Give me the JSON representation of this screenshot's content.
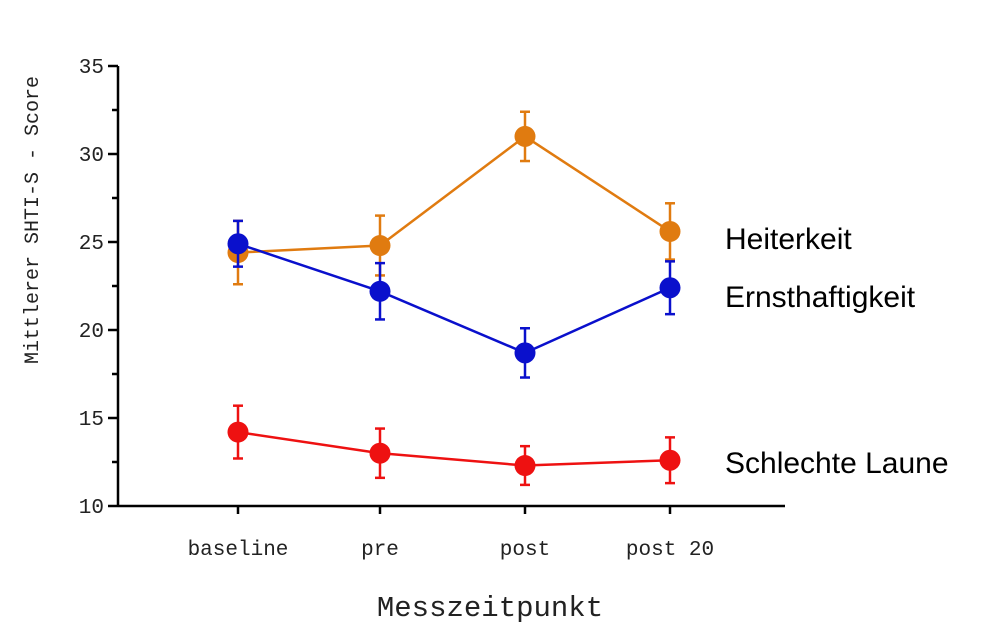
{
  "chart_data": {
    "type": "line",
    "xlabel": "Messzeitpunkt",
    "ylabel": "Mittlerer SHTI-S - Score",
    "categories": [
      "baseline",
      "pre",
      "post",
      "post 20"
    ],
    "ylim": [
      10,
      35
    ],
    "yticks": [
      10,
      15,
      20,
      25,
      30,
      35
    ],
    "grid": false,
    "error_bars": true,
    "series": [
      {
        "name": "Heiterkeit",
        "color": "#E07B10",
        "values": [
          24.4,
          24.8,
          31.0,
          25.6
        ],
        "errors": [
          1.8,
          1.7,
          1.4,
          1.6
        ]
      },
      {
        "name": "Ernsthaftigkeit",
        "color": "#0A10CC",
        "values": [
          24.9,
          22.2,
          18.7,
          22.4
        ],
        "errors": [
          1.3,
          1.6,
          1.4,
          1.5
        ]
      },
      {
        "name": "Schlechte Laune",
        "color": "#EE1111",
        "values": [
          14.2,
          13.0,
          12.3,
          12.6
        ],
        "errors": [
          1.5,
          1.4,
          1.1,
          1.3
        ]
      }
    ]
  }
}
